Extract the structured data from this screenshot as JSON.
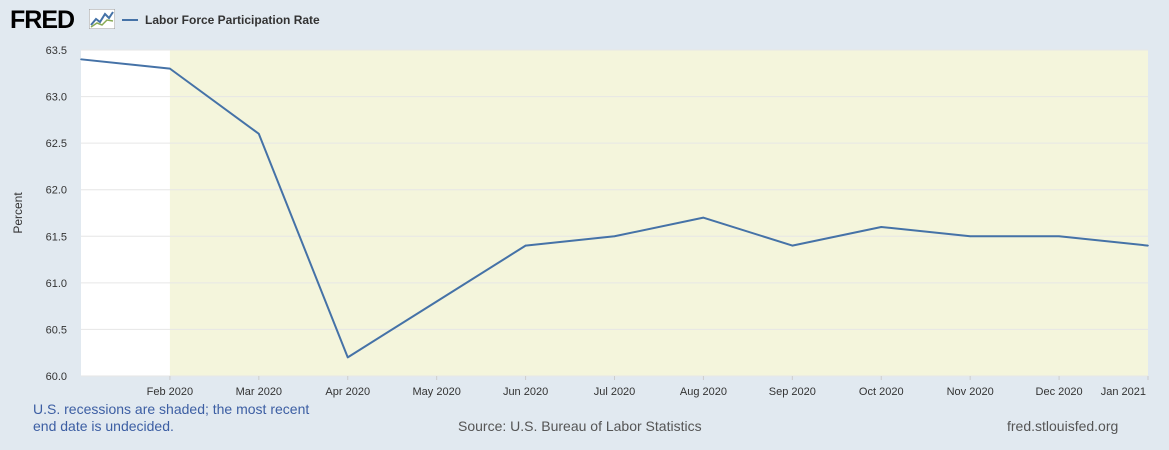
{
  "header": {
    "logo_text": "FRED",
    "logo_icon": "line-chart-icon"
  },
  "colors": {
    "series": "#4572a7",
    "recession_shade": "#f4f5dc",
    "plot_background": "#ffffff",
    "page_background": "#e1e9f0",
    "gridline": "#e6e6e6"
  },
  "chart_data": {
    "type": "line",
    "title": "",
    "xlabel": "",
    "ylabel": "Percent",
    "x": [
      "2020-01",
      "2020-02",
      "2020-03",
      "2020-04",
      "2020-05",
      "2020-06",
      "2020-07",
      "2020-08",
      "2020-09",
      "2020-10",
      "2020-11",
      "2020-12",
      "2021-01"
    ],
    "x_tick_labels": [
      "Feb 2020",
      "Mar 2020",
      "Apr 2020",
      "May 2020",
      "Jun 2020",
      "Jul 2020",
      "Aug 2020",
      "Sep 2020",
      "Oct 2020",
      "Nov 2020",
      "Dec 2020",
      "Jan 2021"
    ],
    "series": [
      {
        "name": "Labor Force Participation Rate",
        "values": [
          63.4,
          63.3,
          62.6,
          60.2,
          60.8,
          61.4,
          61.5,
          61.7,
          61.4,
          61.6,
          61.5,
          61.5,
          61.4
        ]
      }
    ],
    "ylim": [
      60.0,
      63.5
    ],
    "y_ticks": [
      "60.0",
      "60.5",
      "61.0",
      "61.5",
      "62.0",
      "62.5",
      "63.0",
      "63.5"
    ],
    "grid": true,
    "legend": "top-left",
    "recession_shading": {
      "start": "2020-02",
      "end": "2021-01"
    }
  },
  "footer": {
    "recession_note": "U.S. recessions are shaded; the most recent end date is undecided.",
    "source": "Source: U.S. Bureau of Labor Statistics",
    "url": "fred.stlouisfed.org"
  }
}
